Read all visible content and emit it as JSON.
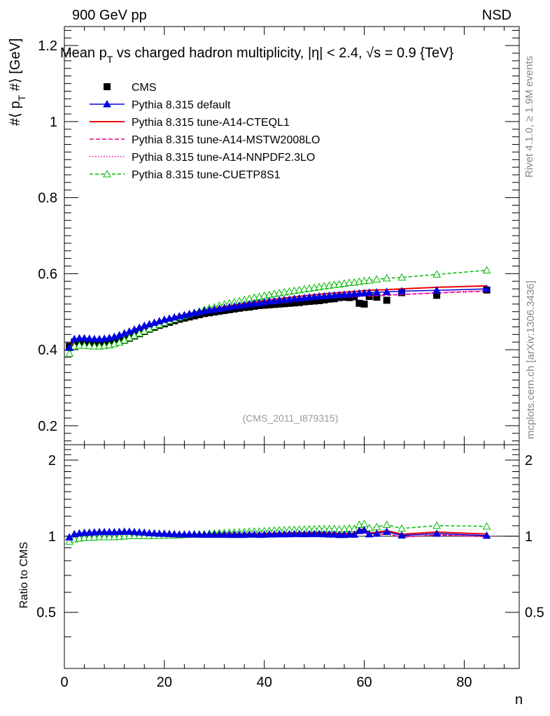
{
  "header": {
    "left": "900 GeV pp",
    "right": "NSD"
  },
  "side_labels": {
    "rivet": "Rivet 4.1.0, ≥ 1.9M events",
    "mcplots": "mcplots.cern.ch [arXiv:1306.3436]"
  },
  "chart_data": {
    "type": "line",
    "title": "Mean p_T vs charged hadron multiplicity, |η| < 2.4, √s = 0.9 {TeV}",
    "title_parts": {
      "a": "Mean p",
      "sub": "T",
      "b": " vs charged hadron multiplicity, ",
      "c": "|η| < 2.4, ",
      "d": "√s = 0.9 {TeV}"
    },
    "analysis_tag": "(CMS_2011_I879315)",
    "xlabel": "n",
    "ylabel": "#⟨ p_T #⟩ [GeV]",
    "ylabel_parts": {
      "a": "#⟨ p",
      "sub": "T",
      "b": " #⟩ [GeV]"
    },
    "ratio_ylabel": "Ratio to CMS",
    "xlim": [
      0,
      91
    ],
    "ylim": [
      0.15,
      1.25
    ],
    "ratio_ylim": [
      0.3,
      2.3
    ],
    "x_ticks": [
      0,
      20,
      40,
      60,
      80
    ],
    "x_tick_labels": [
      "0",
      "20",
      "40",
      "60",
      "80"
    ],
    "y_ticks": [
      0.2,
      0.4,
      0.6,
      0.8,
      1.0,
      1.2
    ],
    "y_tick_labels": [
      "0.2",
      "0.4",
      "0.6",
      "0.8",
      "1",
      "1.2"
    ],
    "ratio_ticks": [
      0.5,
      1,
      2
    ],
    "ratio_tick_labels": [
      "0.5",
      "1",
      "2"
    ],
    "x": [
      1,
      2,
      3,
      4,
      5,
      6,
      7,
      8,
      9,
      10,
      11,
      12,
      13,
      14,
      15,
      16,
      17,
      18,
      19,
      20,
      21,
      22,
      23,
      24,
      25,
      26,
      27,
      28,
      29,
      30,
      31,
      32,
      33,
      34,
      35,
      36,
      37,
      38,
      39,
      40,
      41,
      42,
      43,
      44,
      45,
      46,
      47,
      48,
      49,
      50,
      51,
      52,
      53,
      54,
      55,
      56,
      57,
      58,
      59,
      60,
      61,
      62.5,
      64.5,
      67.5,
      74.5,
      84.5
    ],
    "cms": [
      0.409,
      0.42,
      0.419,
      0.417,
      0.415,
      0.413,
      0.412,
      0.413,
      0.415,
      0.418,
      0.421,
      0.425,
      0.43,
      0.436,
      0.442,
      0.448,
      0.454,
      0.459,
      0.464,
      0.468,
      0.472,
      0.476,
      0.48,
      0.483,
      0.486,
      0.489,
      0.492,
      0.495,
      0.497,
      0.499,
      0.501,
      0.503,
      0.505,
      0.507,
      0.509,
      0.511,
      0.512,
      0.514,
      0.516,
      0.517,
      0.518,
      0.519,
      0.52,
      0.521,
      0.522,
      0.523,
      0.524,
      0.526,
      0.527,
      0.528,
      0.529,
      0.531,
      0.533,
      0.534,
      0.537,
      0.538,
      0.537,
      0.539,
      0.522,
      0.52,
      0.54,
      0.538,
      0.53,
      0.55,
      0.543,
      0.557
    ],
    "series": [
      {
        "name": "CMS",
        "style": "cms"
      },
      {
        "name": "Pythia 8.315 default",
        "color": "#0000dd",
        "marker": "triangle-filled",
        "dash": "",
        "values": [
          0.405,
          0.428,
          0.43,
          0.43,
          0.429,
          0.428,
          0.428,
          0.429,
          0.431,
          0.434,
          0.438,
          0.443,
          0.448,
          0.453,
          0.458,
          0.463,
          0.467,
          0.471,
          0.475,
          0.479,
          0.482,
          0.485,
          0.488,
          0.491,
          0.494,
          0.497,
          0.499,
          0.502,
          0.504,
          0.506,
          0.508,
          0.51,
          0.512,
          0.514,
          0.516,
          0.518,
          0.52,
          0.522,
          0.523,
          0.525,
          0.527,
          0.528,
          0.53,
          0.531,
          0.532,
          0.534,
          0.535,
          0.536,
          0.538,
          0.539,
          0.54,
          0.541,
          0.542,
          0.543,
          0.544,
          0.545,
          0.546,
          0.547,
          0.548,
          0.549,
          0.55,
          0.551,
          0.552,
          0.554,
          0.556,
          0.56
        ]
      },
      {
        "name": "Pythia 8.315 tune-A14-CTEQL1",
        "color": "#ee0000",
        "marker": "",
        "dash": "",
        "values": [
          0.403,
          0.425,
          0.428,
          0.428,
          0.427,
          0.426,
          0.426,
          0.427,
          0.429,
          0.432,
          0.436,
          0.441,
          0.446,
          0.451,
          0.456,
          0.461,
          0.466,
          0.47,
          0.474,
          0.478,
          0.481,
          0.485,
          0.488,
          0.491,
          0.494,
          0.497,
          0.5,
          0.503,
          0.505,
          0.508,
          0.51,
          0.513,
          0.515,
          0.517,
          0.519,
          0.521,
          0.523,
          0.525,
          0.527,
          0.529,
          0.531,
          0.532,
          0.534,
          0.536,
          0.537,
          0.539,
          0.54,
          0.542,
          0.543,
          0.544,
          0.546,
          0.547,
          0.548,
          0.549,
          0.55,
          0.551,
          0.552,
          0.553,
          0.554,
          0.555,
          0.556,
          0.557,
          0.558,
          0.56,
          0.564,
          0.568
        ]
      },
      {
        "name": "Pythia 8.315 tune-A14-MSTW2008LO",
        "color": "#ee0088",
        "marker": "",
        "dash": "6,3",
        "values": [
          0.402,
          0.423,
          0.426,
          0.426,
          0.425,
          0.424,
          0.424,
          0.425,
          0.427,
          0.43,
          0.434,
          0.439,
          0.444,
          0.449,
          0.454,
          0.459,
          0.463,
          0.467,
          0.471,
          0.475,
          0.478,
          0.481,
          0.484,
          0.487,
          0.49,
          0.493,
          0.495,
          0.498,
          0.5,
          0.502,
          0.504,
          0.506,
          0.508,
          0.51,
          0.512,
          0.514,
          0.515,
          0.517,
          0.519,
          0.52,
          0.522,
          0.523,
          0.524,
          0.526,
          0.527,
          0.528,
          0.529,
          0.53,
          0.531,
          0.532,
          0.533,
          0.534,
          0.535,
          0.536,
          0.537,
          0.538,
          0.538,
          0.539,
          0.54,
          0.541,
          0.541,
          0.542,
          0.543,
          0.545,
          0.549,
          0.554
        ]
      },
      {
        "name": "Pythia 8.315 tune-A14-NNPDF2.3LO",
        "color": "#ee00bb",
        "marker": "",
        "dash": "1.5,2.5",
        "values": [
          0.402,
          0.423,
          0.426,
          0.426,
          0.425,
          0.424,
          0.424,
          0.425,
          0.427,
          0.43,
          0.434,
          0.439,
          0.444,
          0.449,
          0.454,
          0.459,
          0.463,
          0.467,
          0.471,
          0.475,
          0.478,
          0.481,
          0.484,
          0.487,
          0.49,
          0.493,
          0.495,
          0.498,
          0.5,
          0.502,
          0.504,
          0.506,
          0.508,
          0.51,
          0.512,
          0.514,
          0.516,
          0.517,
          0.519,
          0.521,
          0.522,
          0.523,
          0.525,
          0.526,
          0.527,
          0.528,
          0.529,
          0.53,
          0.531,
          0.533,
          0.534,
          0.535,
          0.536,
          0.536,
          0.537,
          0.538,
          0.539,
          0.54,
          0.54,
          0.541,
          0.542,
          0.543,
          0.544,
          0.546,
          0.55,
          0.556
        ]
      },
      {
        "name": "Pythia 8.315 tune-CUETP8S1",
        "color": "#00bb00",
        "marker": "triangle-open",
        "dash": "5,3",
        "values": [
          0.39,
          0.409,
          0.411,
          0.411,
          0.41,
          0.409,
          0.409,
          0.41,
          0.412,
          0.415,
          0.419,
          0.425,
          0.431,
          0.437,
          0.443,
          0.449,
          0.455,
          0.461,
          0.466,
          0.471,
          0.476,
          0.48,
          0.485,
          0.489,
          0.493,
          0.497,
          0.501,
          0.505,
          0.509,
          0.512,
          0.516,
          0.519,
          0.522,
          0.525,
          0.528,
          0.531,
          0.534,
          0.537,
          0.539,
          0.542,
          0.544,
          0.547,
          0.549,
          0.551,
          0.553,
          0.555,
          0.557,
          0.559,
          0.561,
          0.563,
          0.565,
          0.567,
          0.569,
          0.571,
          0.572,
          0.574,
          0.576,
          0.577,
          0.579,
          0.581,
          0.582,
          0.585,
          0.588,
          0.59,
          0.598,
          0.609
        ]
      }
    ]
  }
}
